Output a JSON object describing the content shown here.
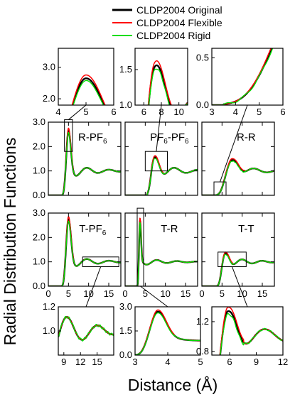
{
  "chart_data": {
    "type": "line",
    "ylabel": "Radial Distribution Functions",
    "xlabel": "Distance (Å)",
    "legend": {
      "placement": "top",
      "entries": [
        {
          "label": "CLDP2004 Original",
          "color": "#000000"
        },
        {
          "label": "CLDP2004 Flexible",
          "color": "#ff0000"
        },
        {
          "label": "CLDP2004 Rigid",
          "color": "#00dd00"
        }
      ]
    },
    "main_xlim": [
      0,
      18
    ],
    "main_xticks": [
      "0",
      "5",
      "10",
      "15"
    ],
    "main_ylim": [
      0,
      3
    ],
    "main_yticks": [
      "0.0",
      "1.0",
      "2.0",
      "3.0"
    ],
    "panels": [
      {
        "id": "R-PF6",
        "label_main": "R-PF",
        "label_sub": "6",
        "label_tail": "",
        "peak": 5.0,
        "height": 2.65,
        "width": 0.55,
        "osc_amp": 0.28,
        "osc_period": 5.5,
        "onset": 3.3
      },
      {
        "id": "PF6-PF6",
        "label_main": "PF",
        "label_sub": "6",
        "label_tail": "-PF",
        "label_sub2": "6",
        "peak": 7.2,
        "height": 1.62,
        "width": 1.1,
        "osc_amp": 0.3,
        "osc_period": 6.0,
        "onset": 5.5
      },
      {
        "id": "R-R",
        "label_main": "R-R",
        "label_sub": "",
        "label_tail": "",
        "peak": 7.5,
        "height": 1.45,
        "width": 1.6,
        "osc_amp": 0.25,
        "osc_period": 6.5,
        "onset": 3.5
      },
      {
        "id": "T-PF6",
        "label_main": "T-PF",
        "label_sub": "6",
        "label_tail": "",
        "peak": 5.0,
        "height": 2.75,
        "width": 0.6,
        "osc_amp": 0.25,
        "osc_period": 5.5,
        "onset": 3.3
      },
      {
        "id": "T-R",
        "label_main": "T-R",
        "label_sub": "",
        "label_tail": "",
        "peak": 3.7,
        "height": 2.7,
        "width": 0.25,
        "osc_amp": 0.15,
        "osc_period": 5.0,
        "onset": 3.0
      },
      {
        "id": "T-T",
        "label_main": "T-T",
        "label_sub": "",
        "label_tail": "",
        "peak": 5.8,
        "height": 1.35,
        "width": 0.9,
        "osc_amp": 0.2,
        "osc_period": 5.0,
        "onset": 3.8
      }
    ],
    "insets": [
      {
        "id": "inset-R-PF6",
        "xlim": [
          4,
          6
        ],
        "xticks": [
          "4",
          "5",
          "6"
        ],
        "ylim": [
          1.8,
          3.6
        ],
        "yticks": [
          "2.0",
          "3.0"
        ],
        "source": "R-PF6",
        "box_x": [
          4,
          6
        ],
        "box_y": [
          1.8,
          3.1
        ]
      },
      {
        "id": "inset-PF6-PF6",
        "xlim": [
          5,
          11
        ],
        "xticks": [
          "6",
          "8",
          "10"
        ],
        "ylim": [
          1.0,
          1.8
        ],
        "yticks": [
          "1.0",
          "1.5"
        ],
        "source": "PF6-PF6",
        "box_x": [
          5,
          10.5
        ],
        "box_y": [
          1.0,
          1.8
        ]
      },
      {
        "id": "inset-R-R",
        "xlim": [
          3,
          6
        ],
        "xticks": [
          "3",
          "4",
          "5",
          "6"
        ],
        "ylim": [
          0.0,
          0.6
        ],
        "yticks": [
          "0.0",
          "0.5"
        ],
        "source": "R-R",
        "box_x": [
          3,
          6
        ],
        "box_y": [
          0.0,
          0.55
        ]
      },
      {
        "id": "inset-T-PF6",
        "xlim": [
          8,
          18
        ],
        "xticks": [
          "9",
          "12",
          "15"
        ],
        "ylim": [
          0.8,
          1.2
        ],
        "yticks": [
          "1.0",
          "1.2"
        ],
        "source": "T-PF6",
        "box_x": [
          8.5,
          17.5
        ],
        "box_y": [
          0.8,
          1.2
        ]
      },
      {
        "id": "inset-T-R",
        "xlim": [
          3,
          5
        ],
        "xticks": [
          "3",
          "4",
          "5"
        ],
        "ylim": [
          0.0,
          3.0
        ],
        "yticks": [
          "0.0",
          "1.5",
          "3.0"
        ],
        "source": "T-R",
        "box_x": [
          3.0,
          4.6
        ],
        "box_y": [
          0.0,
          3.2
        ]
      },
      {
        "id": "inset-T-T",
        "xlim": [
          4,
          12
        ],
        "xticks": [
          "6",
          "9",
          "12"
        ],
        "ylim": [
          0.75,
          1.4
        ],
        "yticks": [
          "0.8",
          "1.2"
        ],
        "source": "T-T",
        "box_x": [
          4.0,
          11.0
        ],
        "box_y": [
          0.8,
          1.4
        ]
      }
    ]
  }
}
